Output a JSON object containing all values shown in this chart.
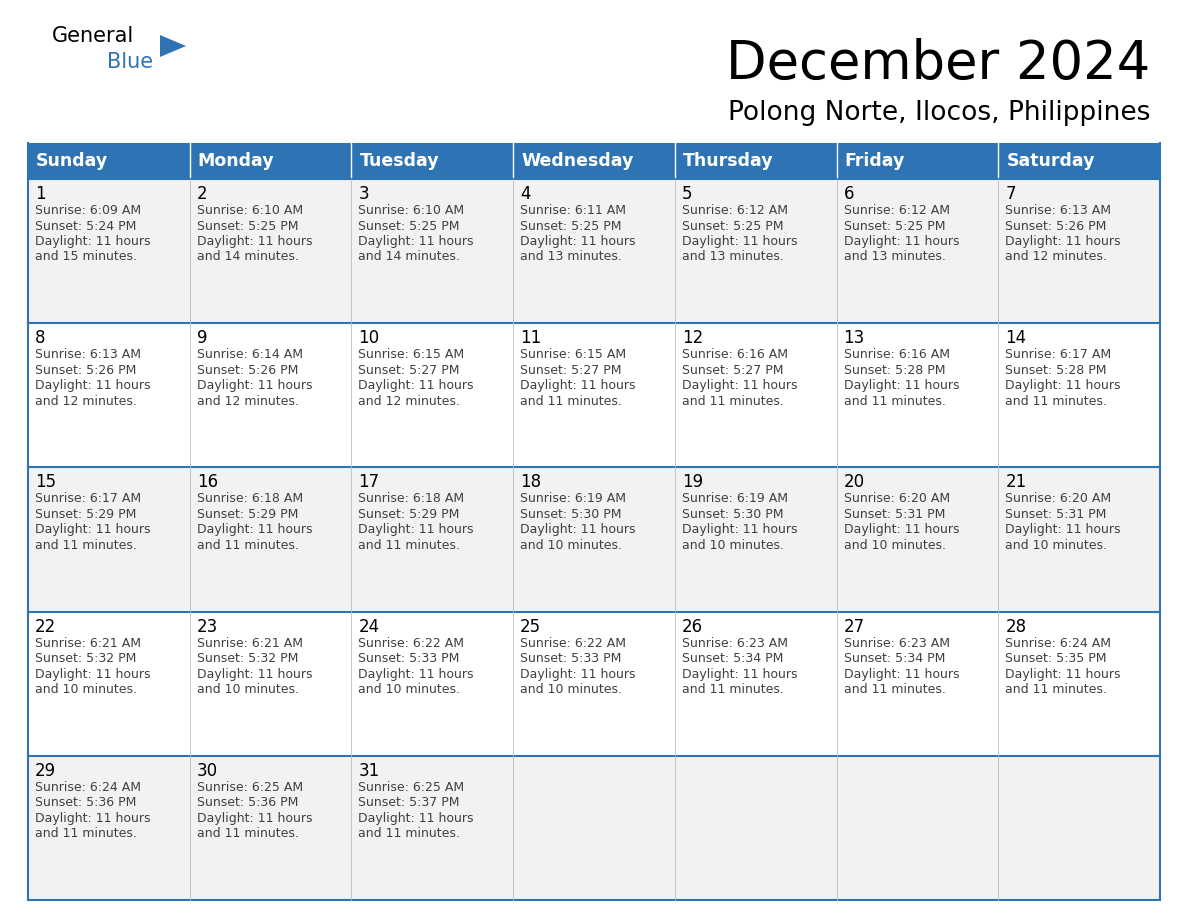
{
  "title": "December 2024",
  "subtitle": "Polong Norte, Ilocos, Philippines",
  "header_color": "#2E74B5",
  "header_text_color": "#FFFFFF",
  "border_color": "#2E74B5",
  "day_headers": [
    "Sunday",
    "Monday",
    "Tuesday",
    "Wednesday",
    "Thursday",
    "Friday",
    "Saturday"
  ],
  "weeks": [
    [
      {
        "day": 1,
        "sunrise": "6:09 AM",
        "sunset": "5:24 PM",
        "daylight": "11 hours and 15 minutes."
      },
      {
        "day": 2,
        "sunrise": "6:10 AM",
        "sunset": "5:25 PM",
        "daylight": "11 hours and 14 minutes."
      },
      {
        "day": 3,
        "sunrise": "6:10 AM",
        "sunset": "5:25 PM",
        "daylight": "11 hours and 14 minutes."
      },
      {
        "day": 4,
        "sunrise": "6:11 AM",
        "sunset": "5:25 PM",
        "daylight": "11 hours and 13 minutes."
      },
      {
        "day": 5,
        "sunrise": "6:12 AM",
        "sunset": "5:25 PM",
        "daylight": "11 hours and 13 minutes."
      },
      {
        "day": 6,
        "sunrise": "6:12 AM",
        "sunset": "5:25 PM",
        "daylight": "11 hours and 13 minutes."
      },
      {
        "day": 7,
        "sunrise": "6:13 AM",
        "sunset": "5:26 PM",
        "daylight": "11 hours and 12 minutes."
      }
    ],
    [
      {
        "day": 8,
        "sunrise": "6:13 AM",
        "sunset": "5:26 PM",
        "daylight": "11 hours and 12 minutes."
      },
      {
        "day": 9,
        "sunrise": "6:14 AM",
        "sunset": "5:26 PM",
        "daylight": "11 hours and 12 minutes."
      },
      {
        "day": 10,
        "sunrise": "6:15 AM",
        "sunset": "5:27 PM",
        "daylight": "11 hours and 12 minutes."
      },
      {
        "day": 11,
        "sunrise": "6:15 AM",
        "sunset": "5:27 PM",
        "daylight": "11 hours and 11 minutes."
      },
      {
        "day": 12,
        "sunrise": "6:16 AM",
        "sunset": "5:27 PM",
        "daylight": "11 hours and 11 minutes."
      },
      {
        "day": 13,
        "sunrise": "6:16 AM",
        "sunset": "5:28 PM",
        "daylight": "11 hours and 11 minutes."
      },
      {
        "day": 14,
        "sunrise": "6:17 AM",
        "sunset": "5:28 PM",
        "daylight": "11 hours and 11 minutes."
      }
    ],
    [
      {
        "day": 15,
        "sunrise": "6:17 AM",
        "sunset": "5:29 PM",
        "daylight": "11 hours and 11 minutes."
      },
      {
        "day": 16,
        "sunrise": "6:18 AM",
        "sunset": "5:29 PM",
        "daylight": "11 hours and 11 minutes."
      },
      {
        "day": 17,
        "sunrise": "6:18 AM",
        "sunset": "5:29 PM",
        "daylight": "11 hours and 11 minutes."
      },
      {
        "day": 18,
        "sunrise": "6:19 AM",
        "sunset": "5:30 PM",
        "daylight": "11 hours and 10 minutes."
      },
      {
        "day": 19,
        "sunrise": "6:19 AM",
        "sunset": "5:30 PM",
        "daylight": "11 hours and 10 minutes."
      },
      {
        "day": 20,
        "sunrise": "6:20 AM",
        "sunset": "5:31 PM",
        "daylight": "11 hours and 10 minutes."
      },
      {
        "day": 21,
        "sunrise": "6:20 AM",
        "sunset": "5:31 PM",
        "daylight": "11 hours and 10 minutes."
      }
    ],
    [
      {
        "day": 22,
        "sunrise": "6:21 AM",
        "sunset": "5:32 PM",
        "daylight": "11 hours and 10 minutes."
      },
      {
        "day": 23,
        "sunrise": "6:21 AM",
        "sunset": "5:32 PM",
        "daylight": "11 hours and 10 minutes."
      },
      {
        "day": 24,
        "sunrise": "6:22 AM",
        "sunset": "5:33 PM",
        "daylight": "11 hours and 10 minutes."
      },
      {
        "day": 25,
        "sunrise": "6:22 AM",
        "sunset": "5:33 PM",
        "daylight": "11 hours and 10 minutes."
      },
      {
        "day": 26,
        "sunrise": "6:23 AM",
        "sunset": "5:34 PM",
        "daylight": "11 hours and 11 minutes."
      },
      {
        "day": 27,
        "sunrise": "6:23 AM",
        "sunset": "5:34 PM",
        "daylight": "11 hours and 11 minutes."
      },
      {
        "day": 28,
        "sunrise": "6:24 AM",
        "sunset": "5:35 PM",
        "daylight": "11 hours and 11 minutes."
      }
    ],
    [
      {
        "day": 29,
        "sunrise": "6:24 AM",
        "sunset": "5:36 PM",
        "daylight": "11 hours and 11 minutes."
      },
      {
        "day": 30,
        "sunrise": "6:25 AM",
        "sunset": "5:36 PM",
        "daylight": "11 hours and 11 minutes."
      },
      {
        "day": 31,
        "sunrise": "6:25 AM",
        "sunset": "5:37 PM",
        "daylight": "11 hours and 11 minutes."
      },
      null,
      null,
      null,
      null
    ]
  ],
  "logo_triangle_color": "#2E74B5",
  "fig_width": 11.88,
  "fig_height": 9.18,
  "dpi": 100
}
